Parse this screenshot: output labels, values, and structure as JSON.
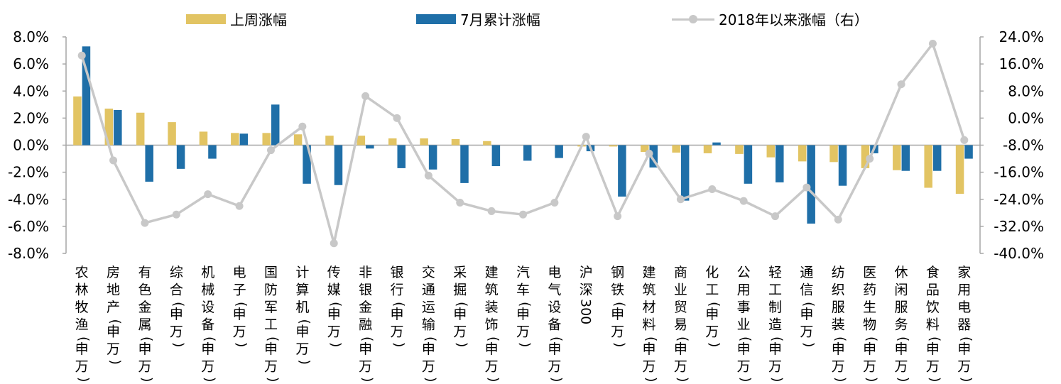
{
  "chart_data": {
    "type": "bar+line",
    "categories": [
      "农林牧渔(申万)",
      "房地产(申万)",
      "有色金属(申万)",
      "综合(申万)",
      "机械设备(申万)",
      "电子(申万)",
      "国防军工(申万)",
      "计算机(申万)",
      "传媒(申万)",
      "非银金融(申万)",
      "银行(申万)",
      "交通运输(申万)",
      "采掘(申万)",
      "建筑装饰(申万)",
      "汽车(申万)",
      "电气设备(申万)",
      "沪深300",
      "钢铁(申万)",
      "建筑材料(申万)",
      "商业贸易(申万)",
      "化工(申万)",
      "公用事业(申万)",
      "轻工制造(申万)",
      "通信(申万)",
      "纺织服装(申万)",
      "医药生物(申万)",
      "休闲服务(申万)",
      "食品饮料(申万)",
      "家用电器(申万)"
    ],
    "series": [
      {
        "name": "上周涨幅",
        "type": "bar",
        "axis": "left",
        "color": "#e2c463",
        "values": [
          3.6,
          2.7,
          2.4,
          1.7,
          1.0,
          0.9,
          0.9,
          0.8,
          0.7,
          0.7,
          0.5,
          0.5,
          0.45,
          0.3,
          0.0,
          0.0,
          -0.1,
          -0.1,
          -0.5,
          -0.55,
          -0.6,
          -0.65,
          -0.9,
          -1.2,
          -1.25,
          -1.7,
          -1.85,
          -3.15,
          -3.6
        ]
      },
      {
        "name": "7月累计涨幅",
        "type": "bar",
        "axis": "left",
        "color": "#1f6fa8",
        "values": [
          7.3,
          2.6,
          -2.7,
          -1.75,
          -1.0,
          0.85,
          3.0,
          -2.85,
          -2.95,
          -0.25,
          -1.7,
          -1.8,
          -2.8,
          -1.55,
          -1.15,
          -0.95,
          -0.45,
          -3.8,
          -1.65,
          -4.1,
          0.2,
          -2.85,
          -2.75,
          -5.8,
          -3.0,
          -0.6,
          -1.9,
          -1.9,
          -1.0
        ]
      },
      {
        "name": "2018年以来涨幅（右）",
        "type": "line",
        "axis": "right",
        "color": "#c8c8c8",
        "values": [
          18.5,
          -12.5,
          -31.0,
          -28.5,
          -22.5,
          -26.0,
          -9.5,
          -2.5,
          -37.0,
          6.5,
          0.0,
          -17.0,
          -25.0,
          -27.5,
          -28.5,
          -25.0,
          -5.5,
          -29.0,
          -10.5,
          -24.0,
          -21.0,
          -24.5,
          -29.0,
          -20.5,
          -30.0,
          -12.0,
          10.0,
          22.0,
          -6.5
        ]
      }
    ],
    "y_left": {
      "min": -8,
      "max": 8,
      "step": 2,
      "ticks": [
        "8.0%",
        "6.0%",
        "4.0%",
        "2.0%",
        "0.0%",
        "-2.0%",
        "-4.0%",
        "-6.0%",
        "-8.0%"
      ]
    },
    "y_right": {
      "min": -40,
      "max": 24,
      "step": 8,
      "ticks": [
        "24.0%",
        "16.0%",
        "8.0%",
        "0.0%",
        "-8.0%",
        "-16.0%",
        "-24.0%",
        "-32.0%",
        "-40.0%"
      ]
    },
    "legend_position": "top",
    "grid": false
  }
}
